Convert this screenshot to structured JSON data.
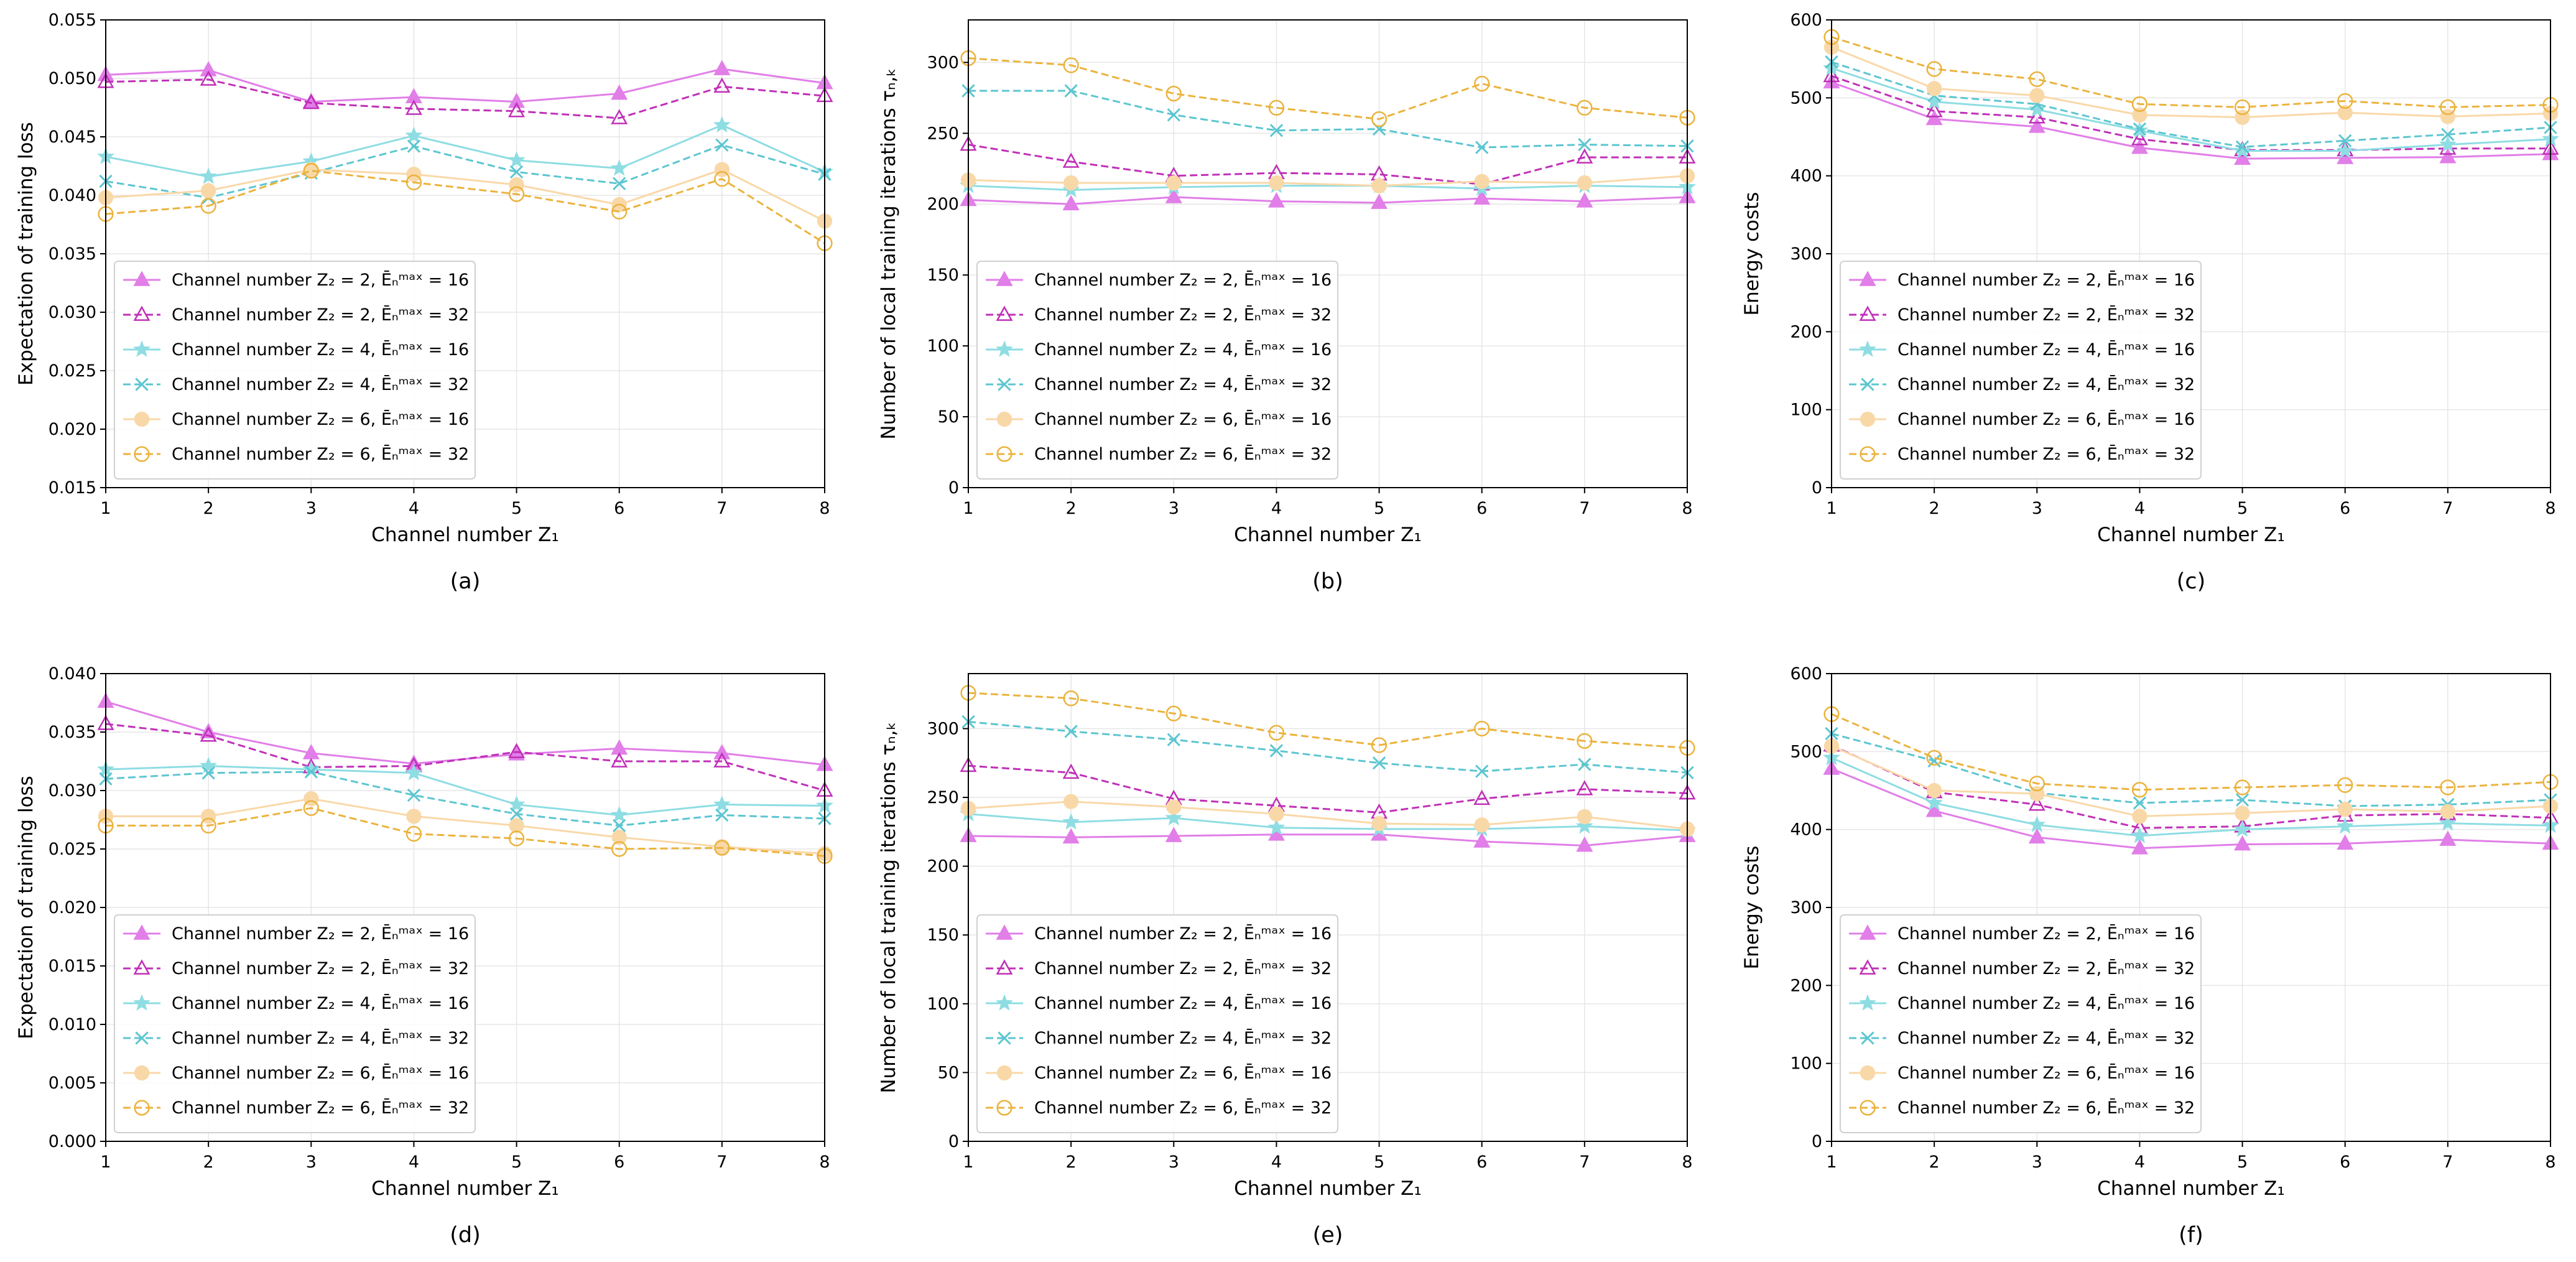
{
  "figure": {
    "legend_labels": [
      "Channel number Z₂ = 2, Ēₙᵐᵃˣ = 16",
      "Channel number Z₂ = 2, Ēₙᵐᵃˣ = 32",
      "Channel number Z₂ = 4, Ēₙᵐᵃˣ = 16",
      "Channel number Z₂ = 4, Ēₙᵐᵃˣ = 32",
      "Channel number Z₂ = 6, Ēₙᵐᵃˣ = 16",
      "Channel number Z₂ = 6, Ēₙᵐᵃˣ = 32"
    ],
    "series_style": [
      {
        "color": "#e17ee8",
        "dash": "solid",
        "marker": "triangle-filled"
      },
      {
        "color": "#c030b8",
        "dash": "dashed",
        "marker": "triangle-open"
      },
      {
        "color": "#8edde3",
        "dash": "solid",
        "marker": "star"
      },
      {
        "color": "#5cc6d0",
        "dash": "dashed",
        "marker": "x"
      },
      {
        "color": "#f9d8a8",
        "dash": "solid",
        "marker": "circle-filled"
      },
      {
        "color": "#ebb33d",
        "dash": "dashed",
        "marker": "circle-open"
      }
    ]
  },
  "chart_data": [
    {
      "type": "line",
      "caption": "(a)",
      "xlabel": "Channel number Z₁",
      "ylabel": "Expectation of training loss",
      "xlim": [
        1,
        8
      ],
      "ylim": [
        0.015,
        0.055
      ],
      "x": [
        1,
        2,
        3,
        4,
        5,
        6,
        7,
        8
      ],
      "xticks": [
        "1",
        "2",
        "3",
        "4",
        "5",
        "6",
        "7",
        "8"
      ],
      "yticks": [
        "0.015",
        "0.020",
        "0.025",
        "0.030",
        "0.035",
        "0.040",
        "0.045",
        "0.050",
        "0.055"
      ],
      "series": [
        {
          "name": "Z2=2, E=16",
          "values": [
            0.0503,
            0.0507,
            0.048,
            0.0484,
            0.048,
            0.0487,
            0.0508,
            0.0496
          ]
        },
        {
          "name": "Z2=2, E=32",
          "values": [
            0.0497,
            0.0499,
            0.0479,
            0.0474,
            0.0472,
            0.0466,
            0.0493,
            0.0485
          ]
        },
        {
          "name": "Z2=4, E=16",
          "values": [
            0.0433,
            0.0416,
            0.0429,
            0.0451,
            0.043,
            0.0423,
            0.046,
            0.042
          ]
        },
        {
          "name": "Z2=4, E=32",
          "values": [
            0.0412,
            0.0398,
            0.0419,
            0.0442,
            0.042,
            0.041,
            0.0443,
            0.0418
          ]
        },
        {
          "name": "Z2=6, E=16",
          "values": [
            0.0398,
            0.0404,
            0.0422,
            0.0418,
            0.0409,
            0.0392,
            0.0422,
            0.0378
          ]
        },
        {
          "name": "Z2=6, E=32",
          "values": [
            0.0384,
            0.0391,
            0.0421,
            0.0411,
            0.0401,
            0.0386,
            0.0414,
            0.0359
          ]
        }
      ]
    },
    {
      "type": "line",
      "caption": "(b)",
      "xlabel": "Channel number Z₁",
      "ylabel": "Number of local training iterations τₙ,ₖ",
      "xlim": [
        1,
        8
      ],
      "ylim": [
        0,
        330
      ],
      "x": [
        1,
        2,
        3,
        4,
        5,
        6,
        7,
        8
      ],
      "xticks": [
        "1",
        "2",
        "3",
        "4",
        "5",
        "6",
        "7",
        "8"
      ],
      "yticks": [
        "0",
        "50",
        "100",
        "150",
        "200",
        "250",
        "300"
      ],
      "series": [
        {
          "name": "Z2=2, E=16",
          "values": [
            203,
            200,
            205,
            202,
            201,
            204,
            202,
            205
          ]
        },
        {
          "name": "Z2=2, E=32",
          "values": [
            242,
            230,
            220,
            222,
            221,
            214,
            233,
            233
          ]
        },
        {
          "name": "Z2=4, E=16",
          "values": [
            213,
            210,
            212,
            213,
            213,
            211,
            213,
            212
          ]
        },
        {
          "name": "Z2=4, E=32",
          "values": [
            280,
            280,
            263,
            252,
            253,
            240,
            242,
            241
          ]
        },
        {
          "name": "Z2=6, E=16",
          "values": [
            217,
            215,
            215,
            215,
            213,
            216,
            215,
            220
          ]
        },
        {
          "name": "Z2=6, E=32",
          "values": [
            303,
            298,
            278,
            268,
            260,
            285,
            268,
            261
          ]
        }
      ]
    },
    {
      "type": "line",
      "caption": "(c)",
      "xlabel": "Channel number Z₁",
      "ylabel": "Energy costs",
      "xlim": [
        1,
        8
      ],
      "ylim": [
        0,
        600
      ],
      "x": [
        1,
        2,
        3,
        4,
        5,
        6,
        7,
        8
      ],
      "xticks": [
        "1",
        "2",
        "3",
        "4",
        "5",
        "6",
        "7",
        "8"
      ],
      "yticks": [
        "0",
        "100",
        "200",
        "300",
        "400",
        "500",
        "600"
      ],
      "series": [
        {
          "name": "Z2=2, E=16",
          "values": [
            520,
            473,
            463,
            436,
            422,
            423,
            424,
            428
          ]
        },
        {
          "name": "Z2=2, E=32",
          "values": [
            528,
            483,
            475,
            447,
            433,
            433,
            435,
            435
          ]
        },
        {
          "name": "Z2=4, E=16",
          "values": [
            538,
            495,
            485,
            458,
            432,
            432,
            440,
            447
          ]
        },
        {
          "name": "Z2=4, E=32",
          "values": [
            546,
            503,
            492,
            460,
            437,
            445,
            453,
            462
          ]
        },
        {
          "name": "Z2=6, E=16",
          "values": [
            565,
            512,
            503,
            478,
            475,
            481,
            476,
            480
          ]
        },
        {
          "name": "Z2=6, E=32",
          "values": [
            578,
            537,
            524,
            492,
            488,
            496,
            488,
            491
          ]
        }
      ]
    },
    {
      "type": "line",
      "caption": "(d)",
      "xlabel": "Channel number Z₁",
      "ylabel": "Expectation of training loss",
      "xlim": [
        1,
        8
      ],
      "ylim": [
        0.0,
        0.04
      ],
      "x": [
        1,
        2,
        3,
        4,
        5,
        6,
        7,
        8
      ],
      "xticks": [
        "1",
        "2",
        "3",
        "4",
        "5",
        "6",
        "7",
        "8"
      ],
      "yticks": [
        "0.000",
        "0.005",
        "0.010",
        "0.015",
        "0.020",
        "0.025",
        "0.030",
        "0.035",
        "0.040"
      ],
      "series": [
        {
          "name": "Z2=2, E=16",
          "values": [
            0.0376,
            0.035,
            0.0332,
            0.0323,
            0.0331,
            0.0336,
            0.0332,
            0.0322
          ]
        },
        {
          "name": "Z2=2, E=32",
          "values": [
            0.0357,
            0.0347,
            0.032,
            0.0321,
            0.0333,
            0.0325,
            0.0325,
            0.03
          ]
        },
        {
          "name": "Z2=4, E=16",
          "values": [
            0.0318,
            0.0321,
            0.0318,
            0.0315,
            0.0288,
            0.0279,
            0.0288,
            0.0287
          ]
        },
        {
          "name": "Z2=4, E=32",
          "values": [
            0.031,
            0.0315,
            0.0316,
            0.0296,
            0.028,
            0.027,
            0.0279,
            0.0276
          ]
        },
        {
          "name": "Z2=6, E=16",
          "values": [
            0.0278,
            0.0278,
            0.0293,
            0.0278,
            0.027,
            0.026,
            0.0252,
            0.0246
          ]
        },
        {
          "name": "Z2=6, E=32",
          "values": [
            0.027,
            0.027,
            0.0285,
            0.0263,
            0.0259,
            0.025,
            0.0251,
            0.0244
          ]
        }
      ]
    },
    {
      "type": "line",
      "caption": "(e)",
      "xlabel": "Channel number Z₁",
      "ylabel": "Number of local training iterations τₙ,ₖ",
      "xlim": [
        1,
        8
      ],
      "ylim": [
        0,
        340
      ],
      "x": [
        1,
        2,
        3,
        4,
        5,
        6,
        7,
        8
      ],
      "xticks": [
        "1",
        "2",
        "3",
        "4",
        "5",
        "6",
        "7",
        "8"
      ],
      "yticks": [
        "0",
        "50",
        "100",
        "150",
        "200",
        "250",
        "300"
      ],
      "series": [
        {
          "name": "Z2=2, E=16",
          "values": [
            222,
            221,
            222,
            223,
            223,
            218,
            215,
            222
          ]
        },
        {
          "name": "Z2=2, E=32",
          "values": [
            273,
            268,
            249,
            244,
            239,
            249,
            256,
            253
          ]
        },
        {
          "name": "Z2=4, E=16",
          "values": [
            238,
            232,
            235,
            228,
            227,
            227,
            229,
            226
          ]
        },
        {
          "name": "Z2=4, E=32",
          "values": [
            305,
            298,
            292,
            284,
            275,
            269,
            274,
            268
          ]
        },
        {
          "name": "Z2=6, E=16",
          "values": [
            242,
            247,
            243,
            238,
            231,
            230,
            236,
            227
          ]
        },
        {
          "name": "Z2=6, E=32",
          "values": [
            326,
            322,
            311,
            297,
            288,
            300,
            291,
            286
          ]
        }
      ]
    },
    {
      "type": "line",
      "caption": "(f)",
      "xlabel": "Channel number Z₁",
      "ylabel": "Energy costs",
      "xlim": [
        1,
        8
      ],
      "ylim": [
        0,
        600
      ],
      "x": [
        1,
        2,
        3,
        4,
        5,
        6,
        7,
        8
      ],
      "xticks": [
        "1",
        "2",
        "3",
        "4",
        "5",
        "6",
        "7",
        "8"
      ],
      "yticks": [
        "0",
        "100",
        "200",
        "300",
        "400",
        "500",
        "600"
      ],
      "series": [
        {
          "name": "Z2=2, E=16",
          "values": [
            478,
            424,
            390,
            376,
            381,
            382,
            387,
            382
          ]
        },
        {
          "name": "Z2=2, E=32",
          "values": [
            508,
            448,
            432,
            402,
            404,
            418,
            420,
            415
          ]
        },
        {
          "name": "Z2=4, E=16",
          "values": [
            492,
            434,
            406,
            392,
            400,
            404,
            408,
            405
          ]
        },
        {
          "name": "Z2=4, E=32",
          "values": [
            523,
            488,
            447,
            434,
            438,
            430,
            432,
            438
          ]
        },
        {
          "name": "Z2=6, E=16",
          "values": [
            507,
            450,
            446,
            417,
            421,
            426,
            423,
            430
          ]
        },
        {
          "name": "Z2=6, E=32",
          "values": [
            548,
            492,
            459,
            451,
            454,
            457,
            454,
            461
          ]
        }
      ]
    }
  ]
}
